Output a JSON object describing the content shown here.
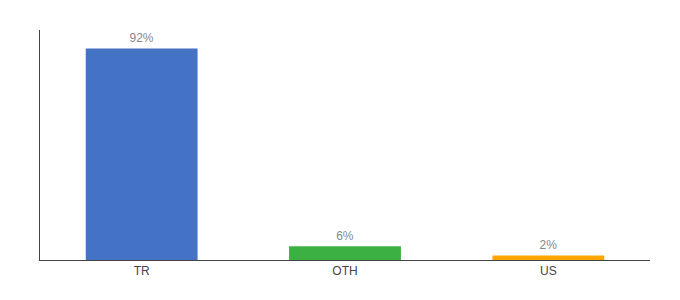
{
  "chart_data": {
    "type": "bar",
    "categories": [
      "TR",
      "OTH",
      "US"
    ],
    "values": [
      92,
      6,
      2
    ],
    "value_labels": [
      "92%",
      "6%",
      "2%"
    ],
    "colors": [
      "#4472C4",
      "#3CB043",
      "#FFA500"
    ],
    "ylim": [
      0,
      100
    ],
    "data_labels": true,
    "tick_labels": "x",
    "grid": false
  }
}
